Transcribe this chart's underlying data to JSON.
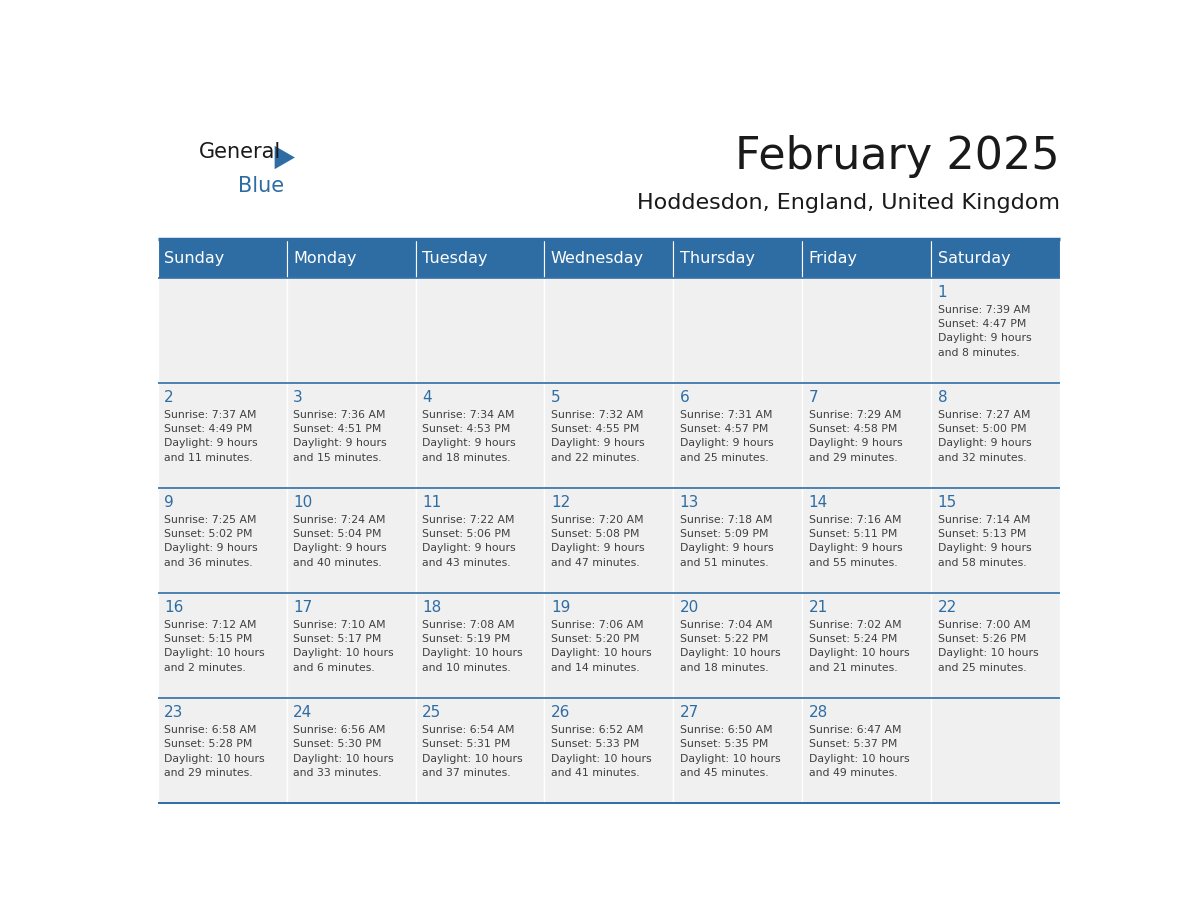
{
  "title": "February 2025",
  "subtitle": "Hoddesdon, England, United Kingdom",
  "days_of_week": [
    "Sunday",
    "Monday",
    "Tuesday",
    "Wednesday",
    "Thursday",
    "Friday",
    "Saturday"
  ],
  "header_bg": "#2E6DA4",
  "header_text": "#FFFFFF",
  "cell_bg": "#F0F0F0",
  "cell_border_color": "#FFFFFF",
  "day_num_color": "#2E6DA4",
  "info_text_color": "#404040",
  "title_color": "#1a1a1a",
  "subtitle_color": "#1a1a1a",
  "calendar_data": [
    [
      {
        "day": null,
        "info": ""
      },
      {
        "day": null,
        "info": ""
      },
      {
        "day": null,
        "info": ""
      },
      {
        "day": null,
        "info": ""
      },
      {
        "day": null,
        "info": ""
      },
      {
        "day": null,
        "info": ""
      },
      {
        "day": 1,
        "info": "Sunrise: 7:39 AM\nSunset: 4:47 PM\nDaylight: 9 hours\nand 8 minutes."
      }
    ],
    [
      {
        "day": 2,
        "info": "Sunrise: 7:37 AM\nSunset: 4:49 PM\nDaylight: 9 hours\nand 11 minutes."
      },
      {
        "day": 3,
        "info": "Sunrise: 7:36 AM\nSunset: 4:51 PM\nDaylight: 9 hours\nand 15 minutes."
      },
      {
        "day": 4,
        "info": "Sunrise: 7:34 AM\nSunset: 4:53 PM\nDaylight: 9 hours\nand 18 minutes."
      },
      {
        "day": 5,
        "info": "Sunrise: 7:32 AM\nSunset: 4:55 PM\nDaylight: 9 hours\nand 22 minutes."
      },
      {
        "day": 6,
        "info": "Sunrise: 7:31 AM\nSunset: 4:57 PM\nDaylight: 9 hours\nand 25 minutes."
      },
      {
        "day": 7,
        "info": "Sunrise: 7:29 AM\nSunset: 4:58 PM\nDaylight: 9 hours\nand 29 minutes."
      },
      {
        "day": 8,
        "info": "Sunrise: 7:27 AM\nSunset: 5:00 PM\nDaylight: 9 hours\nand 32 minutes."
      }
    ],
    [
      {
        "day": 9,
        "info": "Sunrise: 7:25 AM\nSunset: 5:02 PM\nDaylight: 9 hours\nand 36 minutes."
      },
      {
        "day": 10,
        "info": "Sunrise: 7:24 AM\nSunset: 5:04 PM\nDaylight: 9 hours\nand 40 minutes."
      },
      {
        "day": 11,
        "info": "Sunrise: 7:22 AM\nSunset: 5:06 PM\nDaylight: 9 hours\nand 43 minutes."
      },
      {
        "day": 12,
        "info": "Sunrise: 7:20 AM\nSunset: 5:08 PM\nDaylight: 9 hours\nand 47 minutes."
      },
      {
        "day": 13,
        "info": "Sunrise: 7:18 AM\nSunset: 5:09 PM\nDaylight: 9 hours\nand 51 minutes."
      },
      {
        "day": 14,
        "info": "Sunrise: 7:16 AM\nSunset: 5:11 PM\nDaylight: 9 hours\nand 55 minutes."
      },
      {
        "day": 15,
        "info": "Sunrise: 7:14 AM\nSunset: 5:13 PM\nDaylight: 9 hours\nand 58 minutes."
      }
    ],
    [
      {
        "day": 16,
        "info": "Sunrise: 7:12 AM\nSunset: 5:15 PM\nDaylight: 10 hours\nand 2 minutes."
      },
      {
        "day": 17,
        "info": "Sunrise: 7:10 AM\nSunset: 5:17 PM\nDaylight: 10 hours\nand 6 minutes."
      },
      {
        "day": 18,
        "info": "Sunrise: 7:08 AM\nSunset: 5:19 PM\nDaylight: 10 hours\nand 10 minutes."
      },
      {
        "day": 19,
        "info": "Sunrise: 7:06 AM\nSunset: 5:20 PM\nDaylight: 10 hours\nand 14 minutes."
      },
      {
        "day": 20,
        "info": "Sunrise: 7:04 AM\nSunset: 5:22 PM\nDaylight: 10 hours\nand 18 minutes."
      },
      {
        "day": 21,
        "info": "Sunrise: 7:02 AM\nSunset: 5:24 PM\nDaylight: 10 hours\nand 21 minutes."
      },
      {
        "day": 22,
        "info": "Sunrise: 7:00 AM\nSunset: 5:26 PM\nDaylight: 10 hours\nand 25 minutes."
      }
    ],
    [
      {
        "day": 23,
        "info": "Sunrise: 6:58 AM\nSunset: 5:28 PM\nDaylight: 10 hours\nand 29 minutes."
      },
      {
        "day": 24,
        "info": "Sunrise: 6:56 AM\nSunset: 5:30 PM\nDaylight: 10 hours\nand 33 minutes."
      },
      {
        "day": 25,
        "info": "Sunrise: 6:54 AM\nSunset: 5:31 PM\nDaylight: 10 hours\nand 37 minutes."
      },
      {
        "day": 26,
        "info": "Sunrise: 6:52 AM\nSunset: 5:33 PM\nDaylight: 10 hours\nand 41 minutes."
      },
      {
        "day": 27,
        "info": "Sunrise: 6:50 AM\nSunset: 5:35 PM\nDaylight: 10 hours\nand 45 minutes."
      },
      {
        "day": 28,
        "info": "Sunrise: 6:47 AM\nSunset: 5:37 PM\nDaylight: 10 hours\nand 49 minutes."
      },
      {
        "day": null,
        "info": ""
      }
    ]
  ],
  "logo_text_general": "General",
  "logo_text_blue": "Blue",
  "logo_color_general": "#1a1a1a",
  "logo_color_blue": "#2E6DA4",
  "logo_triangle_color": "#2E6DA4"
}
